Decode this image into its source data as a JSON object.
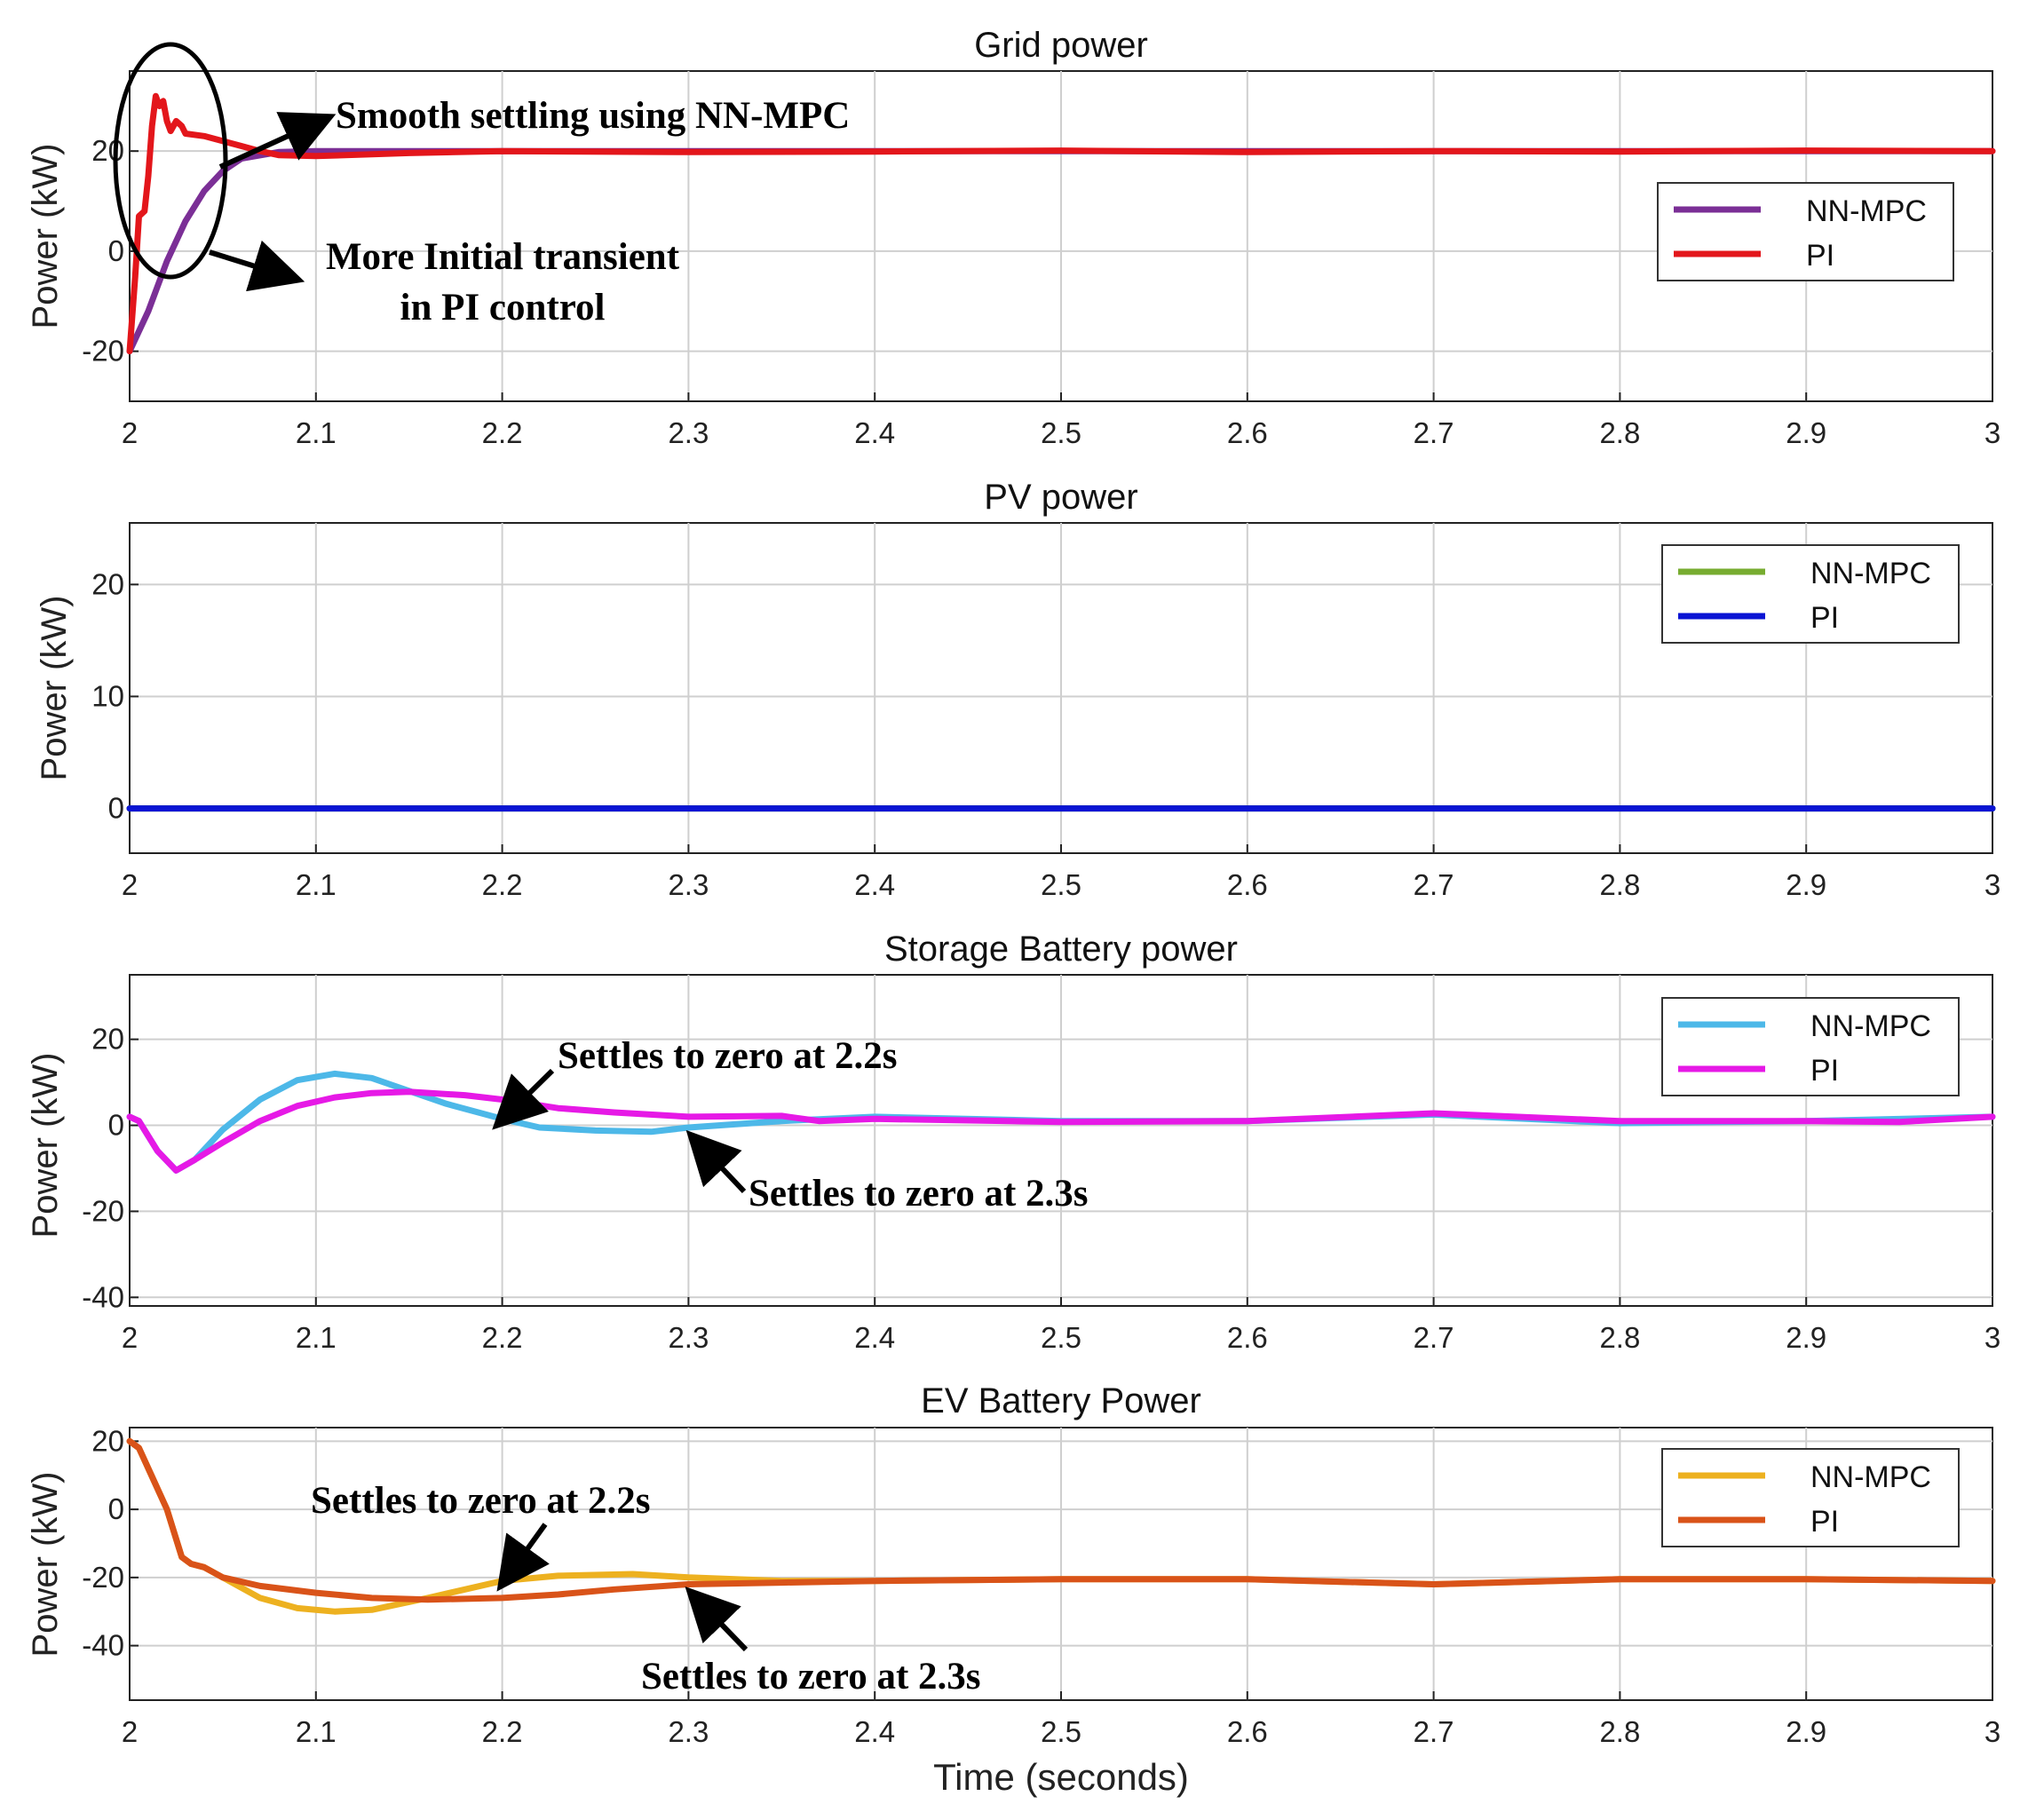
{
  "chart_data": [
    {
      "type": "line",
      "title": "Grid power",
      "xlabel": "",
      "ylabel": "Power (kW)",
      "xlim": [
        2,
        3
      ],
      "ylim": [
        -30,
        36
      ],
      "xticks": [
        "2",
        "2.1",
        "2.2",
        "2.3",
        "2.4",
        "2.5",
        "2.6",
        "2.7",
        "2.8",
        "2.9",
        "3"
      ],
      "yticks": [
        {
          "value": -20,
          "label": "-20"
        },
        {
          "value": 0,
          "label": "0"
        },
        {
          "value": 20,
          "label": "20"
        }
      ],
      "legend": "right",
      "series": [
        {
          "name": "NN-MPC",
          "color": "#7b2f96",
          "points": [
            [
              2.0,
              -20
            ],
            [
              2.01,
              -12
            ],
            [
              2.02,
              -2
            ],
            [
              2.03,
              6
            ],
            [
              2.04,
              12
            ],
            [
              2.05,
              16
            ],
            [
              2.06,
              18.5
            ],
            [
              2.08,
              19.8
            ],
            [
              2.1,
              20
            ],
            [
              2.3,
              20
            ],
            [
              3.0,
              20
            ]
          ]
        },
        {
          "name": "PI",
          "color": "#e3161b",
          "points": [
            [
              2.0,
              -20
            ],
            [
              2.003,
              -5
            ],
            [
              2.005,
              7
            ],
            [
              2.008,
              8
            ],
            [
              2.01,
              15
            ],
            [
              2.012,
              25
            ],
            [
              2.014,
              31
            ],
            [
              2.016,
              29
            ],
            [
              2.018,
              30
            ],
            [
              2.02,
              26
            ],
            [
              2.022,
              24
            ],
            [
              2.025,
              26
            ],
            [
              2.028,
              25
            ],
            [
              2.03,
              23.5
            ],
            [
              2.04,
              23
            ],
            [
              2.05,
              22
            ],
            [
              2.06,
              21
            ],
            [
              2.07,
              20
            ],
            [
              2.08,
              19.2
            ],
            [
              2.1,
              19
            ],
            [
              2.15,
              19.6
            ],
            [
              2.2,
              20
            ],
            [
              2.3,
              19.8
            ],
            [
              2.4,
              19.9
            ],
            [
              2.5,
              20.1
            ],
            [
              2.6,
              19.8
            ],
            [
              2.7,
              20
            ],
            [
              2.8,
              19.9
            ],
            [
              2.9,
              20.1
            ],
            [
              3.0,
              20
            ]
          ]
        }
      ],
      "annotations": [
        "Smooth settling using NN-MPC",
        "More Initial transient",
        "in PI control"
      ]
    },
    {
      "type": "line",
      "title": "PV power",
      "xlabel": "",
      "ylabel": "Power (kW)",
      "xlim": [
        2,
        3
      ],
      "ylim": [
        -4,
        25.5
      ],
      "xticks": [
        "2",
        "2.1",
        "2.2",
        "2.3",
        "2.4",
        "2.5",
        "2.6",
        "2.7",
        "2.8",
        "2.9",
        "3"
      ],
      "yticks": [
        {
          "value": 0,
          "label": "0"
        },
        {
          "value": 10,
          "label": "10"
        },
        {
          "value": 20,
          "label": "20"
        }
      ],
      "legend": "top-right",
      "series": [
        {
          "name": "NN-MPC",
          "color": "#77ac30",
          "points": [
            [
              2.0,
              0
            ],
            [
              3.0,
              0
            ]
          ]
        },
        {
          "name": "PI",
          "color": "#0a14d4",
          "points": [
            [
              2.0,
              0
            ],
            [
              3.0,
              0
            ]
          ]
        }
      ],
      "annotations": []
    },
    {
      "type": "line",
      "title": "Storage Battery power",
      "xlabel": "",
      "ylabel": "Power (kW)",
      "xlim": [
        2,
        3
      ],
      "ylim": [
        -42,
        35
      ],
      "xticks": [
        "2",
        "2.1",
        "2.2",
        "2.3",
        "2.4",
        "2.5",
        "2.6",
        "2.7",
        "2.8",
        "2.9",
        "3"
      ],
      "yticks": [
        {
          "value": -40,
          "label": "-40"
        },
        {
          "value": -20,
          "label": "-20"
        },
        {
          "value": 0,
          "label": "0"
        },
        {
          "value": 20,
          "label": "20"
        }
      ],
      "legend": "top-right",
      "series": [
        {
          "name": "NN-MPC",
          "color": "#4db8e8",
          "points": [
            [
              2.0,
              2
            ],
            [
              2.005,
              1
            ],
            [
              2.015,
              -6
            ],
            [
              2.025,
              -10.5
            ],
            [
              2.035,
              -8
            ],
            [
              2.05,
              -1
            ],
            [
              2.07,
              6
            ],
            [
              2.09,
              10.5
            ],
            [
              2.11,
              12
            ],
            [
              2.13,
              11
            ],
            [
              2.15,
              8
            ],
            [
              2.17,
              5
            ],
            [
              2.2,
              1.5
            ],
            [
              2.22,
              -0.5
            ],
            [
              2.25,
              -1.2
            ],
            [
              2.28,
              -1.5
            ],
            [
              2.3,
              -0.5
            ],
            [
              2.35,
              1
            ],
            [
              2.4,
              2
            ],
            [
              2.5,
              1
            ],
            [
              2.6,
              1
            ],
            [
              2.7,
              2.5
            ],
            [
              2.8,
              0.5
            ],
            [
              2.9,
              1
            ],
            [
              3.0,
              2
            ]
          ]
        },
        {
          "name": "PI",
          "color": "#e619e6",
          "points": [
            [
              2.0,
              2
            ],
            [
              2.005,
              1
            ],
            [
              2.015,
              -6
            ],
            [
              2.025,
              -10.5
            ],
            [
              2.035,
              -8
            ],
            [
              2.05,
              -4
            ],
            [
              2.07,
              1
            ],
            [
              2.09,
              4.5
            ],
            [
              2.11,
              6.5
            ],
            [
              2.13,
              7.5
            ],
            [
              2.15,
              7.8
            ],
            [
              2.18,
              7
            ],
            [
              2.2,
              6
            ],
            [
              2.23,
              4
            ],
            [
              2.26,
              3
            ],
            [
              2.3,
              2
            ],
            [
              2.35,
              2.2
            ],
            [
              2.37,
              1
            ],
            [
              2.4,
              1.5
            ],
            [
              2.5,
              0.8
            ],
            [
              2.6,
              1
            ],
            [
              2.7,
              2.8
            ],
            [
              2.8,
              1
            ],
            [
              2.9,
              1
            ],
            [
              2.95,
              0.8
            ],
            [
              3.0,
              2
            ]
          ]
        }
      ],
      "annotations": [
        "Settles to zero at 2.2s",
        "Settles to zero at 2.3s"
      ]
    },
    {
      "type": "line",
      "title": "EV Battery Power",
      "xlabel": "Time (seconds)",
      "ylabel": "Power (kW)",
      "xlim": [
        2,
        3
      ],
      "ylim": [
        -56,
        24
      ],
      "xticks": [
        "2",
        "2.1",
        "2.2",
        "2.3",
        "2.4",
        "2.5",
        "2.6",
        "2.7",
        "2.8",
        "2.9",
        "3"
      ],
      "yticks": [
        {
          "value": -40,
          "label": "-40"
        },
        {
          "value": -20,
          "label": "-20"
        },
        {
          "value": 0,
          "label": "0"
        },
        {
          "value": 20,
          "label": "20"
        }
      ],
      "legend": "top-right",
      "series": [
        {
          "name": "NN-MPC",
          "color": "#edb120",
          "points": [
            [
              2.0,
              20
            ],
            [
              2.005,
              18
            ],
            [
              2.01,
              12
            ],
            [
              2.02,
              0
            ],
            [
              2.028,
              -14
            ],
            [
              2.033,
              -16
            ],
            [
              2.04,
              -17
            ],
            [
              2.05,
              -20
            ],
            [
              2.07,
              -26
            ],
            [
              2.09,
              -29
            ],
            [
              2.11,
              -30
            ],
            [
              2.13,
              -29.5
            ],
            [
              2.16,
              -26
            ],
            [
              2.2,
              -21
            ],
            [
              2.23,
              -19.5
            ],
            [
              2.27,
              -19
            ],
            [
              2.3,
              -20
            ],
            [
              2.35,
              -21
            ],
            [
              2.4,
              -21
            ],
            [
              2.5,
              -20.5
            ],
            [
              2.6,
              -20.5
            ],
            [
              2.7,
              -22
            ],
            [
              2.8,
              -20.5
            ],
            [
              2.9,
              -20.5
            ],
            [
              3.0,
              -21
            ]
          ]
        },
        {
          "name": "PI",
          "color": "#d95319",
          "points": [
            [
              2.0,
              20
            ],
            [
              2.005,
              18
            ],
            [
              2.01,
              12
            ],
            [
              2.02,
              0
            ],
            [
              2.028,
              -14
            ],
            [
              2.033,
              -16
            ],
            [
              2.04,
              -17
            ],
            [
              2.05,
              -20
            ],
            [
              2.07,
              -22.5
            ],
            [
              2.1,
              -24.5
            ],
            [
              2.13,
              -26
            ],
            [
              2.16,
              -26.5
            ],
            [
              2.2,
              -26
            ],
            [
              2.23,
              -25
            ],
            [
              2.26,
              -23.5
            ],
            [
              2.3,
              -22
            ],
            [
              2.35,
              -21.5
            ],
            [
              2.4,
              -21
            ],
            [
              2.5,
              -20.5
            ],
            [
              2.6,
              -20.5
            ],
            [
              2.7,
              -22
            ],
            [
              2.8,
              -20.5
            ],
            [
              2.9,
              -20.5
            ],
            [
              3.0,
              -21
            ]
          ]
        }
      ],
      "annotations": [
        "Settles to zero at 2.2s",
        "Settles to zero at 2.3s"
      ]
    }
  ]
}
